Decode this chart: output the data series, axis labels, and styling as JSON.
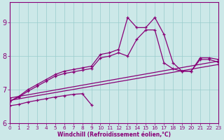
{
  "xlabel": "Windchill (Refroidissement éolien,°C)",
  "bg_color": "#cce8e8",
  "line_color": "#880077",
  "grid_color": "#99cccc",
  "xmin": 0,
  "xmax": 23,
  "ymin": 6.0,
  "ymax": 9.6,
  "yticks": [
    6,
    7,
    8,
    9
  ],
  "xticks": [
    0,
    1,
    2,
    3,
    4,
    5,
    6,
    7,
    8,
    9,
    10,
    11,
    12,
    13,
    14,
    15,
    16,
    17,
    18,
    19,
    20,
    21,
    22,
    23
  ],
  "lines": [
    {
      "comment": "top wiggly line - peaks at 9.1",
      "x": [
        0,
        1,
        2,
        3,
        4,
        5,
        6,
        7,
        8,
        9,
        10,
        11,
        12,
        13,
        14,
        15,
        16,
        17,
        18,
        19,
        20,
        21,
        22,
        23
      ],
      "y": [
        6.65,
        6.8,
        7.0,
        7.15,
        7.3,
        7.45,
        7.55,
        7.6,
        7.65,
        7.7,
        8.05,
        8.1,
        8.2,
        9.15,
        8.85,
        8.85,
        9.15,
        8.65,
        7.8,
        7.55,
        7.55,
        7.95,
        7.95,
        7.9
      ]
    },
    {
      "comment": "second wiggly line",
      "x": [
        0,
        1,
        2,
        3,
        4,
        5,
        6,
        7,
        8,
        9,
        10,
        11,
        12,
        13,
        14,
        15,
        16,
        17,
        18,
        19,
        20,
        21,
        22,
        23
      ],
      "y": [
        6.65,
        6.78,
        6.95,
        7.1,
        7.25,
        7.4,
        7.48,
        7.53,
        7.58,
        7.63,
        7.95,
        8.0,
        8.1,
        8.0,
        8.5,
        8.78,
        8.78,
        7.8,
        7.62,
        7.55,
        7.55,
        7.9,
        7.9,
        7.82
      ]
    },
    {
      "comment": "nearly straight trend line upper",
      "x": [
        0,
        23
      ],
      "y": [
        6.75,
        7.85
      ]
    },
    {
      "comment": "nearly straight trend line mid",
      "x": [
        0,
        23
      ],
      "y": [
        6.68,
        7.75
      ]
    },
    {
      "comment": "bottom diagonal line - starts low ~6.5, goes to ~6.5 at x=9 then drops more",
      "x": [
        0,
        1,
        2,
        3,
        4,
        5,
        6,
        7,
        8,
        9
      ],
      "y": [
        6.52,
        6.56,
        6.63,
        6.68,
        6.73,
        6.78,
        6.82,
        6.86,
        6.88,
        6.55
      ]
    }
  ]
}
